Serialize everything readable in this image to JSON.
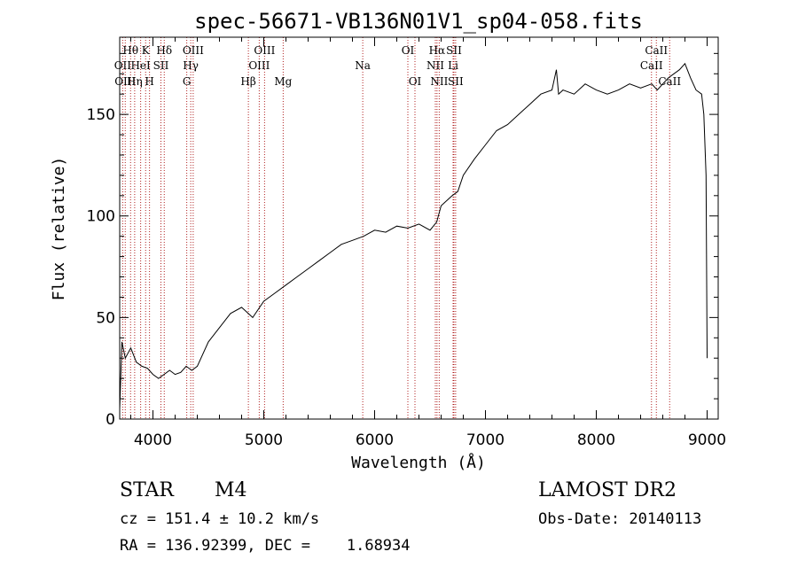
{
  "chart_data": {
    "type": "line",
    "title": "spec-56671-VB136N01V1_sp04-058.fits",
    "xlabel": "Wavelength (Å)",
    "ylabel": "Flux (relative)",
    "xlim": [
      3700,
      9100
    ],
    "ylim": [
      0,
      188
    ],
    "xticks": [
      4000,
      5000,
      6000,
      7000,
      8000,
      9000
    ],
    "yticks": [
      0,
      50,
      100,
      150
    ],
    "grid": false,
    "series": [
      {
        "color": "#000000",
        "x": [
          3700,
          3720,
          3750,
          3800,
          3850,
          3900,
          3950,
          4000,
          4050,
          4100,
          4150,
          4200,
          4250,
          4300,
          4350,
          4400,
          4500,
          4600,
          4700,
          4800,
          4900,
          5000,
          5100,
          5200,
          5300,
          5400,
          5500,
          5600,
          5700,
          5800,
          5900,
          6000,
          6100,
          6200,
          6300,
          6400,
          6500,
          6560,
          6600,
          6700,
          6750,
          6800,
          6900,
          7000,
          7100,
          7200,
          7300,
          7400,
          7500,
          7600,
          7640,
          7660,
          7700,
          7800,
          7900,
          8000,
          8100,
          8200,
          8300,
          8400,
          8500,
          8550,
          8600,
          8650,
          8700,
          8750,
          8800,
          8850,
          8900,
          8950,
          8970,
          8990,
          9000
        ],
        "y": [
          5,
          38,
          30,
          35,
          28,
          26,
          25,
          22,
          20,
          22,
          24,
          22,
          23,
          26,
          24,
          26,
          38,
          45,
          52,
          55,
          50,
          58,
          62,
          66,
          70,
          74,
          78,
          82,
          86,
          88,
          90,
          93,
          92,
          95,
          94,
          96,
          93,
          97,
          105,
          110,
          112,
          120,
          128,
          135,
          142,
          145,
          150,
          155,
          160,
          162,
          172,
          160,
          162,
          160,
          165,
          162,
          160,
          162,
          165,
          163,
          165,
          162,
          165,
          168,
          170,
          172,
          175,
          168,
          162,
          160,
          150,
          120,
          30
        ]
      }
    ],
    "lines": [
      {
        "label": "Hθ",
        "x": 3798,
        "row": 0
      },
      {
        "label": "OII",
        "x": 3727,
        "row": 1
      },
      {
        "label": "OIII",
        "x": 3750,
        "row": 2
      },
      {
        "label": "Hη",
        "x": 3835,
        "row": 2
      },
      {
        "label": "K",
        "x": 3934,
        "row": 0
      },
      {
        "label": "HeI",
        "x": 3889,
        "row": 1
      },
      {
        "label": "H",
        "x": 3969,
        "row": 2
      },
      {
        "label": "Hδ",
        "x": 4102,
        "row": 0
      },
      {
        "label": "SII",
        "x": 4072,
        "row": 1
      },
      {
        "label": "OIII",
        "x": 4363,
        "row": 0
      },
      {
        "label": "Hγ",
        "x": 4341,
        "row": 1
      },
      {
        "label": "G",
        "x": 4305,
        "row": 2
      },
      {
        "label": "OIII",
        "x": 5007,
        "row": 0
      },
      {
        "label": "OIII",
        "x": 4959,
        "row": 1
      },
      {
        "label": "Hβ",
        "x": 4861,
        "row": 2
      },
      {
        "label": "Mg",
        "x": 5175,
        "row": 2
      },
      {
        "label": "Na",
        "x": 5893,
        "row": 1
      },
      {
        "label": "OI",
        "x": 6300,
        "row": 0
      },
      {
        "label": "OI",
        "x": 6364,
        "row": 2
      },
      {
        "label": "Hα",
        "x": 6563,
        "row": 0
      },
      {
        "label": "NII",
        "x": 6548,
        "row": 1
      },
      {
        "label": "NII",
        "x": 6583,
        "row": 2
      },
      {
        "label": "SII",
        "x": 6716,
        "row": 0
      },
      {
        "label": "Li",
        "x": 6708,
        "row": 1
      },
      {
        "label": "SII",
        "x": 6731,
        "row": 2
      },
      {
        "label": "CaII",
        "x": 8542,
        "row": 0
      },
      {
        "label": "CaII",
        "x": 8498,
        "row": 1
      },
      {
        "label": "CaII",
        "x": 8662,
        "row": 2
      }
    ]
  },
  "info": {
    "class_label": "STAR",
    "subclass": "M4",
    "survey": "LAMOST DR2",
    "cz": "cz = 151.4 ± 10.2 km/s",
    "obs_date": "Obs-Date: 20140113",
    "coords": "RA = 136.92399, DEC =    1.68934"
  }
}
